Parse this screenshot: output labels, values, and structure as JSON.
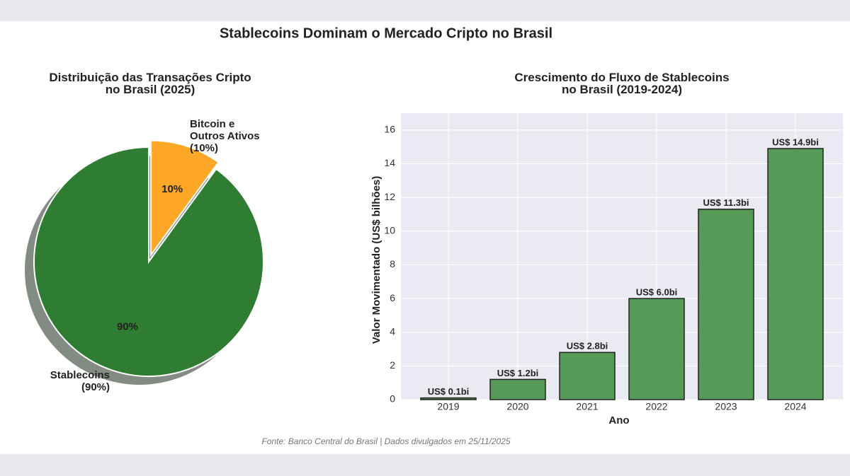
{
  "title": "Stablecoins Dominam o Mercado Cripto no Brasil",
  "source": "Fonte: Banco Central do Brasil | Dados divulgados em 25/11/2025",
  "chart_data": [
    {
      "type": "pie",
      "title": "Distribuição das Transações Cripto\nno Brasil (2025)",
      "categories": [
        "Bitcoin e\nOutros Ativos\n(10%)",
        "Stablecoins\n(90%)"
      ],
      "values": [
        10,
        90
      ],
      "value_labels": [
        "10%",
        "90%"
      ],
      "colors": [
        "#ffa726",
        "#2e7d32"
      ]
    },
    {
      "type": "bar",
      "title": "Crescimento do Fluxo de Stablecoins\nno Brasil (2019-2024)",
      "categories": [
        "2019",
        "2020",
        "2021",
        "2022",
        "2023",
        "2024"
      ],
      "values": [
        0.1,
        1.2,
        2.8,
        6.0,
        11.3,
        14.9
      ],
      "value_labels": [
        "US$ 0.1bi",
        "US$ 1.2bi",
        "US$ 2.8bi",
        "US$ 6.0bi",
        "US$ 11.3bi",
        "US$ 14.9bi"
      ],
      "color": "#559a57",
      "xlabel": "Ano",
      "ylabel": "Valor Movimentado (US$ bilhões)",
      "ylim": [
        0,
        17
      ],
      "yticks": [
        0,
        2,
        4,
        6,
        8,
        10,
        12,
        14,
        16
      ],
      "grid": true
    }
  ]
}
